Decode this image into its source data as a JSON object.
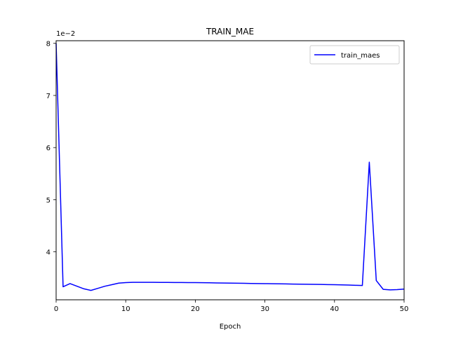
{
  "chart_data": {
    "type": "line",
    "title": "TRAIN_MAE",
    "xlabel": "Epoch",
    "ylabel": "",
    "y_scale_text": "1e−2",
    "xlim": [
      0,
      50
    ],
    "ylim": [
      3.08,
      8.05
    ],
    "x_ticks": [
      0,
      10,
      20,
      30,
      40,
      50
    ],
    "y_ticks": [
      4,
      5,
      6,
      7,
      8
    ],
    "grid": false,
    "legend_position": "top-right",
    "series": [
      {
        "name": "train_maes",
        "color": "#0000ff",
        "x": [
          0,
          1,
          2,
          3,
          4,
          5,
          6,
          7,
          8,
          9,
          10,
          11,
          12,
          13,
          14,
          15,
          16,
          17,
          18,
          19,
          20,
          21,
          22,
          23,
          24,
          25,
          26,
          27,
          28,
          29,
          30,
          31,
          32,
          33,
          34,
          35,
          36,
          37,
          38,
          39,
          40,
          41,
          42,
          43,
          44,
          45,
          46,
          47,
          48,
          49,
          50
        ],
        "y": [
          8.0,
          3.33,
          3.39,
          3.34,
          3.29,
          3.26,
          3.3,
          3.34,
          3.37,
          3.4,
          3.41,
          3.415,
          3.415,
          3.415,
          3.415,
          3.414,
          3.413,
          3.412,
          3.411,
          3.41,
          3.41,
          3.408,
          3.406,
          3.404,
          3.402,
          3.4,
          3.398,
          3.396,
          3.394,
          3.392,
          3.39,
          3.388,
          3.386,
          3.384,
          3.382,
          3.38,
          3.378,
          3.376,
          3.374,
          3.372,
          3.37,
          3.366,
          3.362,
          3.358,
          3.354,
          5.72,
          3.45,
          3.28,
          3.27,
          3.275,
          3.285
        ]
      }
    ]
  }
}
